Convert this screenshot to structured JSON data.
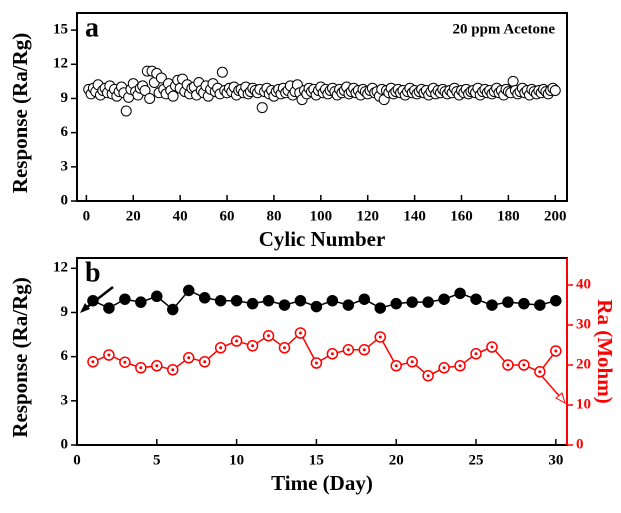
{
  "chart_data": [
    {
      "type": "scatter",
      "panel_label": "a",
      "annotation": "20 ppm Acetone",
      "x_label": "Cylic Number",
      "y_label": "Response (Ra/Rg)",
      "xlim": [
        -4,
        205
      ],
      "ylim": [
        0,
        16.5
      ],
      "xticks": [
        0,
        20,
        40,
        60,
        80,
        100,
        120,
        140,
        160,
        180,
        200
      ],
      "yticks": [
        0,
        3,
        6,
        9,
        12,
        15
      ],
      "x": [
        1,
        2,
        3,
        4,
        5,
        6,
        7,
        8,
        9,
        10,
        11,
        12,
        13,
        14,
        15,
        16,
        17,
        18,
        19,
        20,
        21,
        22,
        23,
        24,
        25,
        26,
        27,
        28,
        29,
        30,
        31,
        32,
        33,
        34,
        35,
        36,
        37,
        38,
        39,
        40,
        41,
        42,
        43,
        44,
        45,
        46,
        47,
        48,
        49,
        50,
        51,
        52,
        53,
        54,
        55,
        56,
        57,
        58,
        59,
        60,
        61,
        62,
        63,
        64,
        65,
        66,
        67,
        68,
        69,
        70,
        71,
        72,
        73,
        74,
        75,
        76,
        77,
        78,
        79,
        80,
        81,
        82,
        83,
        84,
        85,
        86,
        87,
        88,
        89,
        90,
        91,
        92,
        93,
        94,
        95,
        96,
        97,
        98,
        99,
        100,
        101,
        102,
        103,
        104,
        105,
        106,
        107,
        108,
        109,
        110,
        111,
        112,
        113,
        114,
        115,
        116,
        117,
        118,
        119,
        120,
        121,
        122,
        123,
        124,
        125,
        126,
        127,
        128,
        129,
        130,
        131,
        132,
        133,
        134,
        135,
        136,
        137,
        138,
        139,
        140,
        141,
        142,
        143,
        144,
        145,
        146,
        147,
        148,
        149,
        150,
        151,
        152,
        153,
        154,
        155,
        156,
        157,
        158,
        159,
        160,
        161,
        162,
        163,
        164,
        165,
        166,
        167,
        168,
        169,
        170,
        171,
        172,
        173,
        174,
        175,
        176,
        177,
        178,
        179,
        180,
        181,
        182,
        183,
        184,
        185,
        186,
        187,
        188,
        189,
        190,
        191,
        192,
        193,
        194,
        195,
        196,
        197,
        198,
        199,
        200
      ],
      "series": [
        {
          "color": "#000000",
          "values": [
            9.8,
            9.4,
            9.9,
            9.6,
            10.2,
            9.3,
            9.7,
            9.9,
            9.5,
            10.1,
            9.4,
            9.8,
            9.2,
            9.6,
            10.0,
            9.5,
            7.9,
            9.1,
            9.8,
            10.3,
            9.6,
            9.3,
            9.9,
            10.1,
            9.7,
            11.4,
            9.0,
            11.4,
            10.4,
            11.2,
            9.5,
            10.8,
            9.8,
            9.4,
            10.3,
            9.7,
            9.2,
            10.1,
            10.6,
            9.9,
            10.7,
            9.6,
            10.2,
            9.4,
            9.9,
            10.0,
            9.3,
            10.4,
            9.7,
            9.5,
            10.1,
            9.2,
            9.8,
            10.3,
            9.6,
            9.9,
            9.4,
            11.3,
            9.7,
            9.5,
            9.9,
            9.6,
            10.0,
            9.3,
            9.7,
            9.8,
            9.5,
            10.0,
            9.4,
            9.6,
            9.9,
            9.7,
            9.5,
            9.8,
            8.2,
            9.6,
            9.9,
            9.4,
            9.7,
            9.2,
            9.6,
            9.8,
            9.4,
            9.9,
            9.5,
            9.7,
            10.1,
            9.3,
            9.6,
            10.2,
            9.5,
            8.9,
            9.7,
            9.4,
            9.9,
            9.6,
            9.8,
            9.3,
            9.7,
            10.0,
            9.5,
            9.8,
            9.4,
            9.7,
            9.9,
            9.6,
            9.3,
            9.8,
            9.5,
            9.7,
            10.0,
            9.4,
            9.6,
            9.9,
            9.5,
            9.7,
            9.3,
            9.8,
            9.6,
            9.4,
            9.7,
            9.9,
            9.5,
            9.6,
            9.2,
            9.8,
            8.9,
            9.7,
            9.5,
            9.9,
            9.4,
            9.6,
            9.8,
            9.5,
            9.7,
            9.3,
            9.6,
            9.9,
            9.5,
            9.7,
            9.4,
            9.6,
            9.8,
            9.5,
            9.7,
            9.3,
            9.6,
            9.9,
            9.4,
            9.7,
            9.5,
            9.8,
            9.6,
            9.4,
            9.7,
            9.5,
            9.9,
            9.6,
            9.3,
            9.7,
            9.5,
            9.8,
            9.4,
            9.6,
            9.7,
            9.5,
            9.9,
            9.3,
            9.6,
            9.8,
            9.5,
            9.7,
            9.4,
            9.6,
            9.9,
            9.5,
            9.7,
            9.3,
            9.8,
            9.6,
            9.5,
            10.5,
            9.7,
            9.4,
            9.6,
            9.9,
            9.5,
            9.7,
            9.3,
            9.8,
            9.6,
            9.4,
            9.7,
            9.5,
            9.8,
            9.6,
            9.4,
            9.7,
            9.9,
            9.7
          ]
        }
      ]
    },
    {
      "type": "line",
      "panel_label": "b",
      "x_label": "Time (Day)",
      "y_label": "Response (Ra/Rg)",
      "y2_label": "Ra (Mohm)",
      "xlim": [
        0,
        30.7
      ],
      "ylim": [
        0,
        12.7
      ],
      "y2lim": [
        0,
        46.75
      ],
      "xticks": [
        0,
        5,
        10,
        15,
        20,
        25,
        30
      ],
      "yticks": [
        0,
        3,
        6,
        9,
        12
      ],
      "y2ticks": [
        0,
        10,
        20,
        30,
        40
      ],
      "x": [
        1,
        2,
        3,
        4,
        5,
        6,
        7,
        8,
        9,
        10,
        11,
        12,
        13,
        14,
        15,
        16,
        17,
        18,
        19,
        20,
        21,
        22,
        23,
        24,
        25,
        26,
        27,
        28,
        29,
        30
      ],
      "series": [
        {
          "color": "#000000",
          "axis": "y",
          "values": [
            9.8,
            9.3,
            9.9,
            9.7,
            10.1,
            9.2,
            10.5,
            10.0,
            9.8,
            9.8,
            9.6,
            9.8,
            9.5,
            9.8,
            9.4,
            9.8,
            9.5,
            9.9,
            9.3,
            9.6,
            9.7,
            9.7,
            9.9,
            10.3,
            9.9,
            9.5,
            9.7,
            9.6,
            9.5,
            9.8
          ]
        },
        {
          "color": "#ff0000",
          "axis": "y2",
          "values": [
            20.8,
            22.5,
            20.7,
            19.3,
            19.8,
            18.8,
            21.8,
            20.8,
            24.3,
            26,
            24.8,
            27.3,
            24.3,
            28,
            20.5,
            22.8,
            23.8,
            23.8,
            27,
            19.8,
            20.8,
            17.3,
            19.3,
            19.8,
            22.8,
            24.5,
            20,
            20,
            18.3,
            23.5
          ]
        }
      ]
    }
  ]
}
